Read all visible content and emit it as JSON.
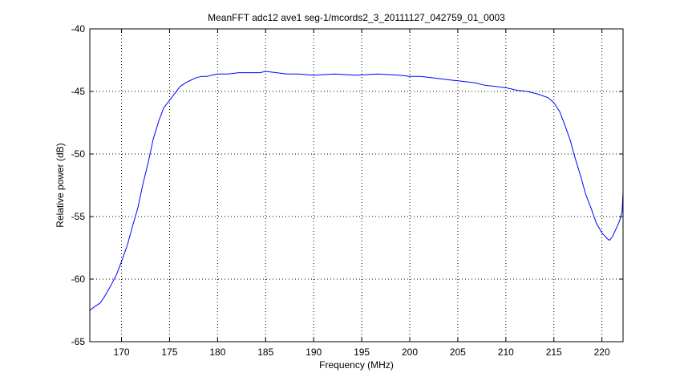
{
  "chart_data": {
    "type": "line",
    "title": "MeanFFT adc12 ave1 seg-1/mcords2_3_20111127_042759_01_0003",
    "xlabel": "Frequency (MHz)",
    "ylabel": "Relative power (dB)",
    "xlim": [
      166.7,
      222.2
    ],
    "ylim": [
      -65,
      -40
    ],
    "xticks": [
      170,
      175,
      180,
      185,
      190,
      195,
      200,
      205,
      210,
      215,
      220
    ],
    "yticks": [
      -65,
      -60,
      -55,
      -50,
      -45,
      -40
    ],
    "grid": true,
    "line_color": "#0000ff",
    "series": [
      {
        "x": [
          166.7,
          167.2,
          167.8,
          168.3,
          168.9,
          169.5,
          170.0,
          170.6,
          171.1,
          171.7,
          172.2,
          172.8,
          173.3,
          173.9,
          174.4,
          175.0,
          175.6,
          176.1,
          176.7,
          177.2,
          177.8,
          178.3,
          178.9,
          179.4,
          180.0,
          181.1,
          182.2,
          183.3,
          184.4,
          185.0,
          186.1,
          187.2,
          188.3,
          190.0,
          192.2,
          194.4,
          196.7,
          198.9,
          200.0,
          201.1,
          202.2,
          203.3,
          204.4,
          205.6,
          206.7,
          207.8,
          208.9,
          210.0,
          211.1,
          212.2,
          213.3,
          214.4,
          215.0,
          215.6,
          216.1,
          216.7,
          217.2,
          217.8,
          218.3,
          218.9,
          219.4,
          220.0,
          220.6,
          220.8,
          221.1,
          221.4,
          221.7,
          221.9,
          222.1,
          222.2
        ],
        "y": [
          -62.5,
          -62.2,
          -61.9,
          -61.3,
          -60.5,
          -59.6,
          -58.6,
          -57.3,
          -55.9,
          -54.3,
          -52.5,
          -50.6,
          -48.8,
          -47.3,
          -46.3,
          -45.7,
          -45.1,
          -44.6,
          -44.3,
          -44.1,
          -43.9,
          -43.8,
          -43.8,
          -43.7,
          -43.6,
          -43.6,
          -43.5,
          -43.5,
          -43.5,
          -43.4,
          -43.5,
          -43.6,
          -43.6,
          -43.7,
          -43.6,
          -43.7,
          -43.6,
          -43.7,
          -43.8,
          -43.8,
          -43.9,
          -44.0,
          -44.1,
          -44.2,
          -44.3,
          -44.5,
          -44.6,
          -44.7,
          -44.9,
          -45.0,
          -45.2,
          -45.5,
          -45.9,
          -46.6,
          -47.6,
          -48.9,
          -50.3,
          -51.8,
          -53.2,
          -54.4,
          -55.5,
          -56.3,
          -56.8,
          -56.9,
          -56.6,
          -56.1,
          -55.6,
          -55.2,
          -54.6,
          -53.0
        ]
      }
    ]
  }
}
